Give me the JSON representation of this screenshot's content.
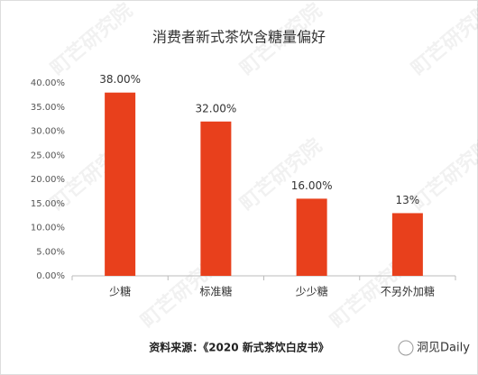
{
  "chart_data": {
    "type": "bar",
    "title": "消费者新式茶饮含糖量偏好",
    "categories": [
      "少糖",
      "标准糖",
      "少少糖",
      "不另外加糖"
    ],
    "values": [
      38,
      32,
      16,
      13
    ],
    "value_labels": [
      "38.00%",
      "32.00%",
      "16.00%",
      "13%"
    ],
    "color": "#e8401c",
    "ylim": [
      0,
      40
    ],
    "yticks": [
      {
        "value": 0,
        "label": "0.00%"
      },
      {
        "value": 5,
        "label": "5.00%"
      },
      {
        "value": 10,
        "label": "10.00%"
      },
      {
        "value": 15,
        "label": "15.00%"
      },
      {
        "value": 20,
        "label": "20.00%"
      },
      {
        "value": 25,
        "label": "25.00%"
      },
      {
        "value": 30,
        "label": "30.00%"
      },
      {
        "value": 35,
        "label": "35.00%"
      },
      {
        "value": 40,
        "label": "40.00%"
      }
    ],
    "grid": false,
    "source": "资料来源：《2020 新式茶饮白皮书》",
    "brand": "洞见Daily",
    "watermark": "町芒研究院"
  }
}
